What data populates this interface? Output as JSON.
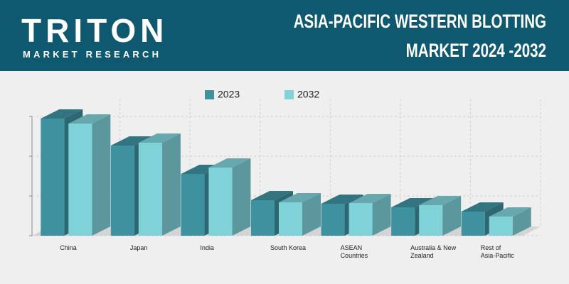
{
  "header": {
    "logo": "TRITON",
    "logo_subtitle": "MARKET RESEARCH"
  },
  "chart_data": {
    "type": "bar3d",
    "title": "ASIA-PACIFIC WESTERN BLOTTING\nMARKET 2024 -2032",
    "categories": [
      "China",
      "Japan",
      "India",
      "South Korea",
      "ASEAN\nCountries",
      "Australia & New\nZealand",
      "Rest of\nAsia-Pacific"
    ],
    "series": [
      {
        "name": "2023",
        "color": "#3e919f",
        "values": [
          165,
          127,
          87,
          50,
          45,
          40,
          34
        ]
      },
      {
        "name": "2032",
        "color": "#7fd2d8",
        "values": [
          158,
          131,
          96,
          47,
          46,
          43,
          27
        ]
      }
    ],
    "ylim": [
      0,
      168
    ],
    "grid": true,
    "legend": "top"
  }
}
